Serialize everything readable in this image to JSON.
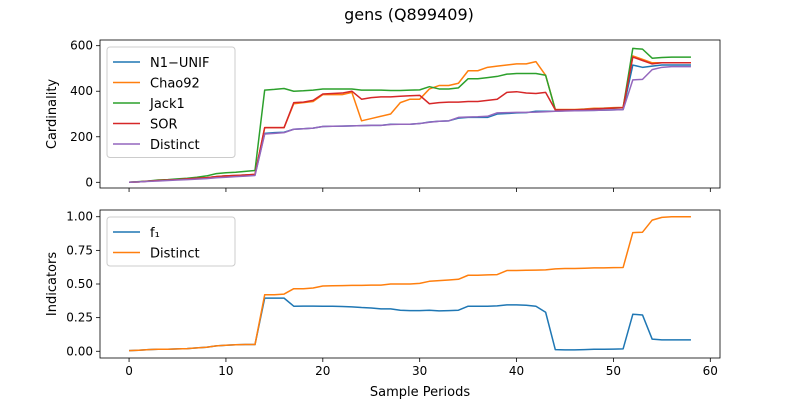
{
  "figure": {
    "title": "gens (Q899409)"
  },
  "chart_data": [
    {
      "type": "line",
      "ylabel": "Cardinality",
      "xlabel": "",
      "xlim": [
        -3,
        61
      ],
      "ylim": [
        -25,
        625
      ],
      "xticks": [
        0,
        10,
        20,
        30,
        40,
        50,
        60
      ],
      "yticks": [
        0,
        200,
        400,
        600
      ],
      "show_xtick_labels": false,
      "grid": false,
      "legend": "upper-left",
      "series": [
        {
          "name": "N1−UNIF",
          "color": "#1f77b4",
          "values": [
            0,
            2,
            5,
            8,
            10,
            12,
            15,
            18,
            20,
            25,
            28,
            30,
            32,
            33,
            215,
            218,
            220,
            233,
            235,
            238,
            245,
            246,
            247,
            248,
            249,
            250,
            250,
            255,
            255,
            255,
            258,
            265,
            268,
            270,
            282,
            285,
            285,
            285,
            300,
            302,
            305,
            306,
            312,
            312,
            312,
            314,
            315,
            316,
            316,
            317,
            318,
            320,
            515,
            505,
            510,
            515,
            515,
            515,
            515
          ]
        },
        {
          "name": "Chao92",
          "color": "#ff7f0e",
          "values": [
            0,
            2,
            5,
            8,
            10,
            12,
            15,
            18,
            20,
            25,
            28,
            30,
            32,
            35,
            240,
            240,
            240,
            345,
            350,
            355,
            385,
            385,
            385,
            395,
            270,
            280,
            290,
            300,
            350,
            365,
            365,
            410,
            425,
            425,
            435,
            490,
            490,
            505,
            510,
            515,
            520,
            520,
            530,
            470,
            320,
            320,
            320,
            322,
            325,
            326,
            328,
            329,
            555,
            540,
            525,
            525,
            525,
            525,
            525
          ]
        },
        {
          "name": "Jack1",
          "color": "#2ca02c",
          "values": [
            0,
            3,
            6,
            10,
            12,
            15,
            18,
            22,
            28,
            38,
            42,
            44,
            48,
            52,
            405,
            408,
            412,
            400,
            402,
            405,
            410,
            410,
            410,
            410,
            405,
            405,
            405,
            403,
            403,
            405,
            406,
            420,
            410,
            410,
            415,
            455,
            455,
            460,
            465,
            475,
            478,
            478,
            478,
            470,
            318,
            318,
            318,
            320,
            322,
            324,
            326,
            328,
            588,
            585,
            545,
            548,
            550,
            550,
            550
          ]
        },
        {
          "name": "SOR",
          "color": "#d62728",
          "values": [
            0,
            2,
            5,
            8,
            10,
            12,
            15,
            18,
            20,
            25,
            28,
            30,
            32,
            35,
            240,
            240,
            240,
            350,
            352,
            360,
            388,
            390,
            392,
            400,
            365,
            372,
            375,
            375,
            378,
            380,
            382,
            345,
            350,
            352,
            352,
            355,
            355,
            360,
            365,
            395,
            398,
            392,
            390,
            395,
            318,
            318,
            318,
            320,
            322,
            324,
            326,
            328,
            550,
            535,
            520,
            525,
            525,
            525,
            525
          ]
        },
        {
          "name": "Distinct",
          "color": "#9467bd",
          "values": [
            0,
            2,
            4,
            6,
            8,
            10,
            12,
            14,
            16,
            20,
            22,
            25,
            27,
            30,
            212,
            215,
            218,
            233,
            235,
            238,
            245,
            246,
            247,
            248,
            249,
            250,
            250,
            254,
            255,
            255,
            258,
            264,
            268,
            270,
            285,
            287,
            288,
            290,
            305,
            306,
            307,
            307,
            308,
            310,
            312,
            313,
            314,
            315,
            316,
            317,
            318,
            319,
            450,
            452,
            495,
            505,
            508,
            508,
            508
          ]
        }
      ]
    },
    {
      "type": "line",
      "ylabel": "Indicators",
      "xlabel": "Sample Periods",
      "xlim": [
        -3,
        61
      ],
      "ylim": [
        -0.05,
        1.05
      ],
      "xticks": [
        0,
        10,
        20,
        30,
        40,
        50,
        60
      ],
      "yticks": [
        0.0,
        0.25,
        0.5,
        0.75,
        1.0
      ],
      "ytick_labels": [
        "0.00",
        "0.25",
        "0.50",
        "0.75",
        "1.00"
      ],
      "show_xtick_labels": true,
      "grid": false,
      "legend": "upper-left",
      "series": [
        {
          "name": "f₁",
          "color": "#1f77b4",
          "values": [
            0.005,
            0.008,
            0.012,
            0.015,
            0.015,
            0.018,
            0.02,
            0.025,
            0.03,
            0.04,
            0.045,
            0.048,
            0.05,
            0.05,
            0.395,
            0.395,
            0.395,
            0.335,
            0.336,
            0.336,
            0.335,
            0.335,
            0.333,
            0.33,
            0.325,
            0.322,
            0.315,
            0.315,
            0.305,
            0.302,
            0.302,
            0.305,
            0.3,
            0.302,
            0.305,
            0.335,
            0.335,
            0.335,
            0.337,
            0.345,
            0.345,
            0.342,
            0.335,
            0.29,
            0.012,
            0.01,
            0.01,
            0.012,
            0.015,
            0.015,
            0.016,
            0.018,
            0.275,
            0.27,
            0.09,
            0.085,
            0.085,
            0.085,
            0.085
          ]
        },
        {
          "name": "Distinct",
          "color": "#ff7f0e",
          "values": [
            0.005,
            0.008,
            0.012,
            0.015,
            0.015,
            0.018,
            0.02,
            0.025,
            0.03,
            0.04,
            0.045,
            0.048,
            0.05,
            0.05,
            0.42,
            0.42,
            0.425,
            0.465,
            0.465,
            0.47,
            0.485,
            0.487,
            0.488,
            0.49,
            0.49,
            0.492,
            0.492,
            0.5,
            0.5,
            0.5,
            0.505,
            0.52,
            0.525,
            0.53,
            0.535,
            0.565,
            0.565,
            0.568,
            0.57,
            0.6,
            0.6,
            0.602,
            0.603,
            0.605,
            0.612,
            0.615,
            0.615,
            0.617,
            0.62,
            0.62,
            0.622,
            0.623,
            0.882,
            0.885,
            0.975,
            0.995,
            1.0,
            1.0,
            1.0
          ]
        }
      ]
    }
  ]
}
